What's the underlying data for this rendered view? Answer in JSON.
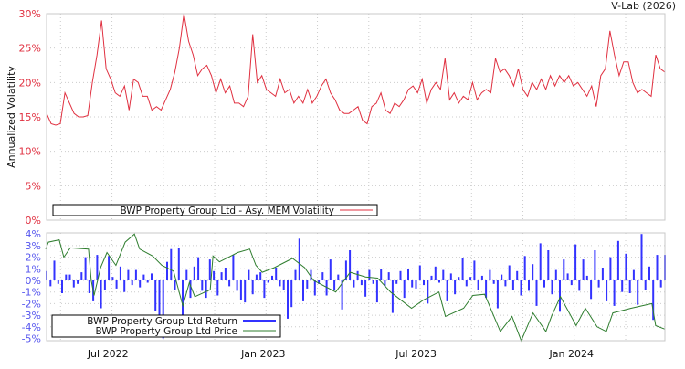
{
  "watermark": "V-Lab (2026)",
  "chart_data": [
    {
      "type": "line",
      "title": "",
      "ylabel": "Annualized Volatility",
      "ylim": [
        0,
        30
      ],
      "yticks": [
        "0%",
        "5%",
        "10%",
        "15%",
        "20%",
        "25%",
        "30%"
      ],
      "ytick_values": [
        0,
        5,
        10,
        15,
        20,
        25,
        30
      ],
      "xlim": [
        2022.288,
        2024.294
      ],
      "grid": true,
      "legend": "bottom-left",
      "colors": {
        "line": "#e03040",
        "ticks": "#e03040"
      },
      "series": [
        {
          "name": "BWP Property Group Ltd - Asy. MEM Volatility",
          "start": 2022.288,
          "end": 2024.294,
          "values": [
            15.5,
            14,
            13.8,
            14,
            18.5,
            17,
            15.5,
            15,
            15,
            15.2,
            20,
            24,
            29,
            22,
            20.5,
            18.5,
            18,
            19.5,
            16,
            20.5,
            20,
            18,
            18,
            16,
            16.5,
            16,
            17.5,
            19,
            21.5,
            25,
            30,
            26,
            24,
            21,
            22,
            22.5,
            21,
            18.5,
            20.5,
            18.5,
            19.5,
            17,
            17,
            16.5,
            18,
            27,
            20,
            21,
            19,
            18.5,
            18,
            20.5,
            18.5,
            19,
            17,
            18,
            17,
            19,
            17,
            18,
            19.5,
            20.5,
            18.5,
            17.5,
            16,
            15.5,
            15.5,
            16,
            16.5,
            14.5,
            14,
            16.5,
            17,
            18.5,
            16,
            15.5,
            17,
            16.5,
            17.5,
            19,
            19.5,
            18.5,
            20.5,
            17,
            19,
            20,
            19,
            23.5,
            17.5,
            18.5,
            17,
            18,
            17.5,
            20,
            17.5,
            18.5,
            19,
            18.5,
            23.5,
            21.5,
            22,
            21,
            19.5,
            22,
            19,
            18,
            20,
            19,
            20.5,
            19,
            21,
            19.5,
            21,
            20,
            21,
            19.5,
            20,
            19,
            18,
            19.5,
            16.5,
            21,
            22,
            27.5,
            24,
            21,
            23,
            23,
            20,
            18.5,
            19,
            18.5,
            18,
            24,
            22,
            21.5
          ]
        }
      ]
    },
    {
      "type": "bar",
      "ylim": [
        -5,
        4
      ],
      "yticks": [
        "-5%",
        "-4%",
        "-3%",
        "-2%",
        "-1%",
        "0%",
        "1%",
        "2%",
        "3%",
        "4%"
      ],
      "ytick_values": [
        -5,
        -4,
        -3,
        -2,
        -1,
        0,
        1,
        2,
        3,
        4
      ],
      "xlim": [
        2022.288,
        2024.294
      ],
      "xticks": [
        "Jul 2022",
        "Jan 2023",
        "Jul 2023",
        "Jan 2024"
      ],
      "xtick_values": [
        2022.496,
        2023.0,
        2023.496,
        2024.0
      ],
      "grid": true,
      "legend": "bottom-left",
      "colors": {
        "return": "#3333ff",
        "price": "#2e7d2e",
        "ticks": "#5555ee"
      },
      "series": [
        {
          "name": "BWP Property Group Ltd Return",
          "type": "bar",
          "start": 2022.288,
          "end": 2024.294,
          "values": [
            0.8,
            -0.5,
            1.7,
            -0.3,
            -1.1,
            0.5,
            0.5,
            -0.6,
            -0.3,
            0.7,
            2.0,
            -1.1,
            -1.8,
            2.2,
            -2.4,
            -0.8,
            2.1,
            0.3,
            -0.7,
            1.2,
            -1.0,
            0.9,
            -0.4,
            0.9,
            -0.6,
            0.5,
            -0.2,
            0.6,
            -2.6,
            -3.0,
            -5.2,
            1.6,
            2.7,
            -0.8,
            2.8,
            -3.2,
            0.9,
            -1.5,
            1.2,
            2.0,
            -0.9,
            -1.5,
            1.8,
            0.8,
            -1.3,
            0.7,
            1.1,
            -0.5,
            2.2,
            -0.9,
            -1.7,
            -1.9,
            0.9,
            -1.2,
            0.5,
            0.7,
            -1.5,
            -0.2,
            0.4,
            1.1,
            -0.5,
            -0.8,
            -3.3,
            -2.3,
            0.9,
            3.6,
            -1.8,
            -0.7,
            0.9,
            -1.3,
            -0.3,
            0.7,
            -1.3,
            1.8,
            -0.8,
            0.5,
            -2.5,
            1.7,
            2.6,
            -0.6,
            0.8,
            -0.4,
            -1.4,
            0.9,
            -0.3,
            -1.9,
            1.0,
            -0.5,
            0.7,
            -2.8,
            -0.3,
            0.8,
            -1.5,
            1.0,
            -0.6,
            -0.7,
            1.3,
            -0.4,
            -2.0,
            0.4,
            1.2,
            -0.2,
            0.9,
            -1.8,
            0.6,
            -1.2,
            0.3,
            1.9,
            -0.5,
            0.3,
            1.7,
            -0.8,
            0.4,
            -1.5,
            0.9,
            -0.3,
            -2.4,
            0.5,
            -0.5,
            1.3,
            -0.8,
            0.8,
            -1.3,
            2.1,
            -0.9,
            1.4,
            -2.2,
            3.2,
            -0.6,
            2.6,
            -1.2,
            0.9,
            -2.7,
            1.8,
            0.6,
            -0.4,
            3.1,
            -0.9,
            1.8,
            0.4,
            -1.6,
            2.6,
            -0.6,
            1.1,
            -1.8,
            2.0,
            -2.2,
            3.4,
            -1.0,
            2.3,
            -1.1,
            0.9,
            -2.1,
            4.2,
            -0.8,
            1.2,
            -3.4,
            2.2,
            -0.6,
            2.2
          ]
        },
        {
          "name": "BWP Property Group Ltd Price",
          "type": "line",
          "note_scale": "plotted on return axis scale",
          "points": [
            [
              2022.285,
              2.7
            ],
            [
              2022.294,
              3.3
            ],
            [
              2022.329,
              3.5
            ],
            [
              2022.344,
              2.0
            ],
            [
              2022.365,
              2.8
            ],
            [
              2022.424,
              2.7
            ],
            [
              2022.433,
              0
            ],
            [
              2022.442,
              -1.3
            ],
            [
              2022.463,
              1.1
            ],
            [
              2022.484,
              2.4
            ],
            [
              2022.513,
              1.3
            ],
            [
              2022.543,
              3.3
            ],
            [
              2022.573,
              4.0
            ],
            [
              2022.59,
              2.7
            ],
            [
              2022.632,
              2.1
            ],
            [
              2022.662,
              1.3
            ],
            [
              2022.7,
              0.8
            ],
            [
              2022.73,
              -2.2
            ],
            [
              2022.751,
              -0.2
            ],
            [
              2022.769,
              -1.4
            ],
            [
              2022.819,
              -0.8
            ],
            [
              2022.828,
              2.1
            ],
            [
              2022.849,
              1.6
            ],
            [
              2022.908,
              2.4
            ],
            [
              2022.947,
              2.7
            ],
            [
              2022.967,
              1.3
            ],
            [
              2022.988,
              0.7
            ],
            [
              2023.027,
              1.1
            ],
            [
              2023.086,
              1.9
            ],
            [
              2023.125,
              1.1
            ],
            [
              2023.154,
              0
            ],
            [
              2023.226,
              -1.0
            ],
            [
              2023.273,
              0.7
            ],
            [
              2023.323,
              0.3
            ],
            [
              2023.362,
              0.2
            ],
            [
              2023.404,
              -1.0
            ],
            [
              2023.472,
              -2.4
            ],
            [
              2023.51,
              -1.7
            ],
            [
              2023.561,
              -1.0
            ],
            [
              2023.582,
              -3.1
            ],
            [
              2023.641,
              -2.4
            ],
            [
              2023.671,
              -1.3
            ],
            [
              2023.709,
              -1.2
            ],
            [
              2023.76,
              -4.4
            ],
            [
              2023.798,
              -3.1
            ],
            [
              2023.828,
              -5.2
            ],
            [
              2023.866,
              -2.8
            ],
            [
              2023.908,
              -4.4
            ],
            [
              2023.926,
              -3.1
            ],
            [
              2023.955,
              -1.4
            ],
            [
              2024.006,
              -3.9
            ],
            [
              2024.036,
              -2.4
            ],
            [
              2024.074,
              -4.0
            ],
            [
              2024.104,
              -4.4
            ],
            [
              2024.125,
              -2.8
            ],
            [
              2024.184,
              -2.4
            ],
            [
              2024.252,
              -2.0
            ],
            [
              2024.264,
              -3.9
            ],
            [
              2024.294,
              -4.2
            ]
          ]
        }
      ]
    }
  ]
}
